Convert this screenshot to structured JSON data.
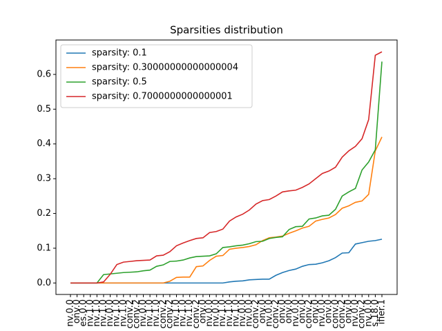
{
  "chart_data": {
    "type": "line",
    "title": "Sparsities distribution",
    "categories": [
      "nv.0.0",
      "onv.0",
      "es.0.0",
      "nv.1.0",
      "nv.1.0",
      "nv.1.0",
      "nv.0.0",
      "nv.1.0",
      "nv.1.0",
      "conv.2",
      "conv.2",
      "nv.0.0",
      "nv.1.0",
      "nv.1.0",
      "conv.2",
      "conv.2",
      "nv.1.0",
      "nv.1.0",
      "nv.1.0",
      "conv.2",
      "onv.0",
      "nv.0.0",
      "nv.0.0",
      "nv.1.0",
      "nv.1.0",
      "nv.1.0",
      "nv.0.0",
      "nv.0.0",
      "conv.2",
      "onv.0",
      "nv.0.0",
      "conv.2",
      "onv.0",
      "onv.0",
      "nv.0.0",
      "onv.0",
      "conv.2",
      "onv.0",
      "nv.0.0",
      "onv.0",
      "conv.0",
      "conv.2",
      "onv.0",
      "nv.0.0",
      "conv.2",
      "nv.0.0",
      "s.18.0",
      "ifier.1"
    ],
    "series": [
      {
        "name": "sparsity: 0.1",
        "color": "#1f77b4",
        "values": [
          0,
          0,
          0,
          0,
          0,
          0,
          0,
          0,
          0,
          0,
          0,
          0,
          0,
          0,
          0,
          0,
          0,
          0,
          0,
          0,
          0,
          0,
          0,
          0,
          0.003,
          0.005,
          0.006,
          0.009,
          0.01,
          0.011,
          0.011,
          0.022,
          0.03,
          0.036,
          0.04,
          0.048,
          0.053,
          0.054,
          0.058,
          0.064,
          0.073,
          0.086,
          0.087,
          0.112,
          0.116,
          0.12,
          0.122,
          0.126
        ]
      },
      {
        "name": "sparsity: 0.30000000000000004",
        "color": "#ff7f0e",
        "values": [
          0,
          0,
          0,
          0,
          0,
          0,
          0,
          0,
          0,
          0,
          0,
          0,
          0,
          0,
          0,
          0.005,
          0.016,
          0.017,
          0.017,
          0.047,
          0.049,
          0.065,
          0.077,
          0.079,
          0.097,
          0.1,
          0.102,
          0.105,
          0.11,
          0.122,
          0.13,
          0.132,
          0.135,
          0.143,
          0.15,
          0.158,
          0.163,
          0.178,
          0.183,
          0.187,
          0.197,
          0.215,
          0.222,
          0.232,
          0.236,
          0.255,
          0.38,
          0.42
        ]
      },
      {
        "name": "sparsity: 0.5",
        "color": "#2ca02c",
        "values": [
          0,
          0,
          0,
          0,
          0,
          0.024,
          0.026,
          0.028,
          0.03,
          0.031,
          0.032,
          0.035,
          0.037,
          0.048,
          0.052,
          0.062,
          0.063,
          0.066,
          0.072,
          0.076,
          0.077,
          0.078,
          0.084,
          0.102,
          0.104,
          0.107,
          0.109,
          0.113,
          0.119,
          0.12,
          0.128,
          0.131,
          0.133,
          0.154,
          0.162,
          0.163,
          0.184,
          0.187,
          0.193,
          0.195,
          0.212,
          0.25,
          0.262,
          0.272,
          0.325,
          0.348,
          0.383,
          0.637
        ]
      },
      {
        "name": "sparsity: 0.7000000000000001",
        "color": "#d62728",
        "values": [
          0,
          0,
          0,
          0,
          0,
          0.003,
          0.025,
          0.053,
          0.06,
          0.062,
          0.064,
          0.065,
          0.066,
          0.078,
          0.08,
          0.09,
          0.107,
          0.115,
          0.122,
          0.128,
          0.13,
          0.145,
          0.148,
          0.155,
          0.178,
          0.19,
          0.198,
          0.21,
          0.227,
          0.237,
          0.24,
          0.25,
          0.262,
          0.265,
          0.267,
          0.275,
          0.285,
          0.3,
          0.315,
          0.322,
          0.333,
          0.362,
          0.38,
          0.393,
          0.415,
          0.47,
          0.655,
          0.665
        ]
      }
    ],
    "ylim": [
      -0.033,
      0.699
    ],
    "yticks": [
      {
        "value": 0,
        "label": "0.0"
      },
      0.1,
      0.2,
      0.3,
      0.4,
      0.5,
      0.6
    ],
    "grid": false,
    "legend": "upper-left"
  }
}
